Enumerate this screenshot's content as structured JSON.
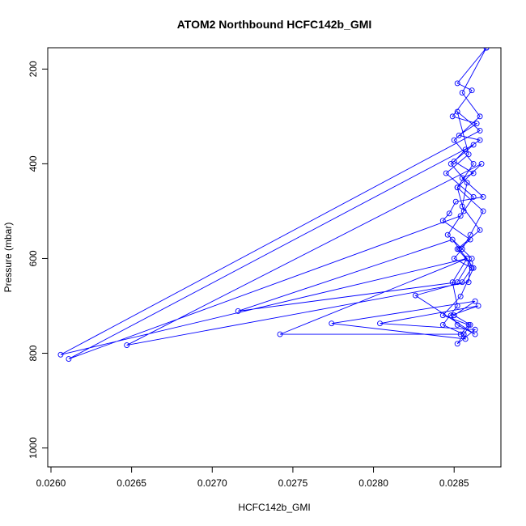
{
  "chart_data": {
    "type": "line",
    "title": "ATOM2 Northbound HCFC142b_GMI",
    "xlabel": "HCFC142b_GMI",
    "ylabel": "Pressure (mbar)",
    "xlim": [
      0.02598,
      0.02879
    ],
    "ylim": [
      1040,
      155
    ],
    "y_inverted": true,
    "grid": false,
    "x_ticks": [
      0.026,
      0.0265,
      0.027,
      0.0275,
      0.028,
      0.0285
    ],
    "x_tick_labels": [
      "0.0260",
      "0.0265",
      "0.0270",
      "0.0275",
      "0.0280",
      "0.0285"
    ],
    "y_ticks": [
      200,
      400,
      600,
      800,
      1000
    ],
    "y_tick_labels": [
      "200",
      "400",
      "600",
      "800",
      "1000"
    ],
    "series": [
      {
        "color": "#0000ff",
        "marker": "open-circle",
        "x": [
          0.0287,
          0.02852,
          0.02861,
          0.02849,
          0.02864,
          0.02853,
          0.02866,
          0.02857,
          0.0285,
          0.02862,
          0.02855,
          0.02868,
          0.02851,
          0.02847,
          0.02843,
          0.0286,
          0.02853,
          0.02858,
          0.02606,
          0.02866,
          0.02852,
          0.02859,
          0.02845,
          0.02862,
          0.02854,
          0.02611,
          0.02862,
          0.02848,
          0.02858,
          0.02855,
          0.02866,
          0.02852,
          0.0286,
          0.02859,
          0.02647,
          0.02867,
          0.02852,
          0.02856,
          0.02846,
          0.02861,
          0.02852,
          0.02716,
          0.02849,
          0.02862,
          0.02854,
          0.02843,
          0.02859,
          0.02854,
          0.02742,
          0.02858,
          0.02849,
          0.02852,
          0.02843,
          0.02856,
          0.02857,
          0.02774,
          0.02863,
          0.0285,
          0.0286,
          0.02856,
          0.02852,
          0.02863,
          0.02804,
          0.02865,
          0.02848,
          0.02852,
          0.02863,
          0.02826,
          0.02855,
          0.02861,
          0.0285,
          0.02855,
          0.0286,
          0.02868,
          0.02852,
          0.02862,
          0.0285,
          0.02866,
          0.02855,
          0.0287
        ],
        "y": [
          155,
          230,
          245,
          300,
          315,
          340,
          350,
          370,
          395,
          420,
          430,
          470,
          480,
          505,
          520,
          560,
          580,
          600,
          803,
          330,
          290,
          380,
          420,
          470,
          510,
          812,
          360,
          400,
          440,
          490,
          540,
          580,
          610,
          650,
          783,
          400,
          450,
          500,
          550,
          600,
          650,
          711,
          560,
          620,
          680,
          720,
          740,
          760,
          760,
          600,
          650,
          700,
          740,
          760,
          770,
          737,
          690,
          720,
          740,
          760,
          780,
          750,
          737,
          700,
          720,
          740,
          760,
          678,
          650,
          620,
          600,
          580,
          550,
          500,
          450,
          400,
          350,
          300,
          250,
          155
        ]
      }
    ]
  }
}
